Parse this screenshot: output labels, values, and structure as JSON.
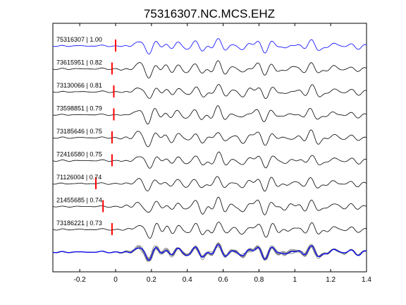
{
  "chart_data": {
    "type": "line",
    "title": "75316307.NC.MCS.EHZ",
    "xlabel": "",
    "ylabel": "",
    "xlim": [
      -0.35,
      1.4
    ],
    "xticks": [
      -0.2,
      0,
      0.2,
      0.4,
      0.6,
      0.8,
      1,
      1.2,
      1.4
    ],
    "xtick_labels": [
      "-0.2",
      "0",
      "0.2",
      "0.4",
      "0.6",
      "0.8",
      "1",
      "1.2",
      "1.4"
    ],
    "grid": false,
    "legend": "none",
    "pick_marker_color": "#ff0000",
    "master_color": "#0000ff",
    "trace_color": "#000000",
    "stack_color": "#808080",
    "traces": [
      {
        "event_id": "75316307",
        "cc": "1.00",
        "label": "75316307 | 1.00",
        "pick_time": 0.0,
        "master": true
      },
      {
        "event_id": "73615951",
        "cc": "0.82",
        "label": "73615951 | 0.82",
        "pick_time": -0.02,
        "master": false
      },
      {
        "event_id": "73130066",
        "cc": "0.81",
        "label": "73130066 | 0.81",
        "pick_time": -0.01,
        "master": false
      },
      {
        "event_id": "73598851",
        "cc": "0.79",
        "label": "73598851 | 0.79",
        "pick_time": -0.01,
        "master": false
      },
      {
        "event_id": "73185646",
        "cc": "0.75",
        "label": "73185646 | 0.75",
        "pick_time": -0.02,
        "master": false
      },
      {
        "event_id": "72416580",
        "cc": "0.75",
        "label": "72416580 | 0.75",
        "pick_time": -0.02,
        "master": false
      },
      {
        "event_id": "71126004",
        "cc": "0.74",
        "label": "71126004 | 0.74",
        "pick_time": -0.11,
        "master": false
      },
      {
        "event_id": "21455685",
        "cc": "0.74",
        "label": "21455685 | 0.74",
        "pick_time": -0.07,
        "master": false
      },
      {
        "event_id": "73186221",
        "cc": "0.73",
        "label": "73186221 | 0.73",
        "pick_time": -0.02,
        "master": false
      }
    ]
  }
}
